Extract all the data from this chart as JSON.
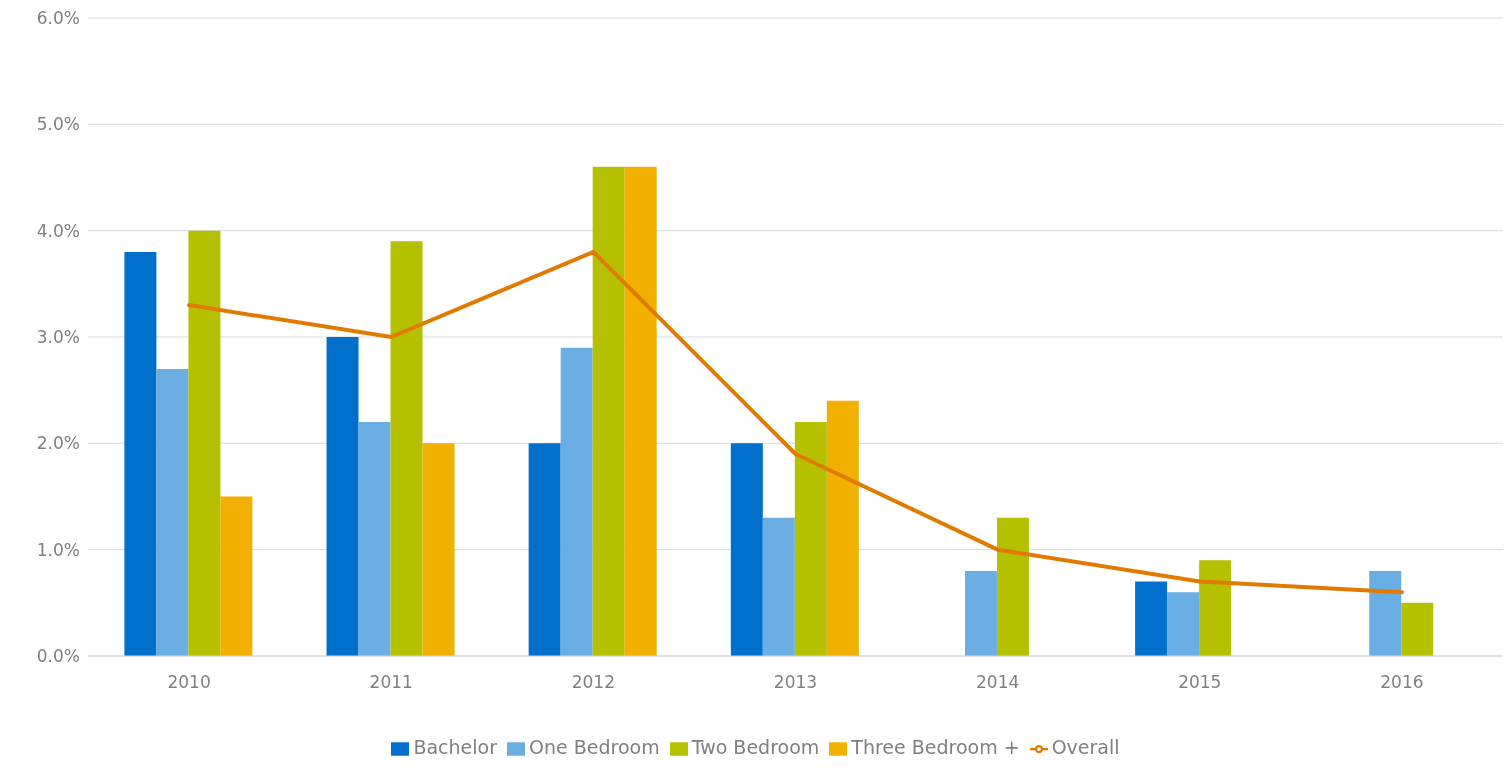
{
  "chart_data": {
    "type": "bar",
    "categories": [
      "2010",
      "2011",
      "2012",
      "2013",
      "2014",
      "2015",
      "2016"
    ],
    "series": [
      {
        "name": "Bachelor",
        "color": "#0070cc",
        "values": [
          3.8,
          3.0,
          2.0,
          2.0,
          null,
          0.7,
          null
        ]
      },
      {
        "name": "One Bedroom",
        "color": "#6aaee3",
        "values": [
          2.7,
          2.2,
          2.9,
          1.3,
          0.8,
          0.6,
          0.8
        ]
      },
      {
        "name": "Two Bedroom",
        "color": "#b5c100",
        "values": [
          4.0,
          3.9,
          4.6,
          2.2,
          1.3,
          0.9,
          0.5
        ]
      },
      {
        "name": "Three Bedroom +",
        "color": "#f2b000",
        "values": [
          1.5,
          2.0,
          4.6,
          2.4,
          null,
          null,
          null
        ]
      },
      {
        "name": "Overall",
        "type": "line",
        "color": "#e07b00",
        "values": [
          3.3,
          3.0,
          3.8,
          1.9,
          1.0,
          0.7,
          0.6
        ]
      }
    ],
    "ylim": [
      0,
      6
    ],
    "yticks": [
      {
        "value": 0,
        "label": "0.0%"
      },
      {
        "value": 1,
        "label": "1.0%"
      },
      {
        "value": 2,
        "label": "2.0%"
      },
      {
        "value": 3,
        "label": "3.0%"
      },
      {
        "value": 4,
        "label": "4.0%"
      },
      {
        "value": 5,
        "label": "5.0%"
      },
      {
        "value": 6,
        "label": "6.0%"
      }
    ],
    "grid": "y",
    "legend": "bottom",
    "marker": "none"
  }
}
